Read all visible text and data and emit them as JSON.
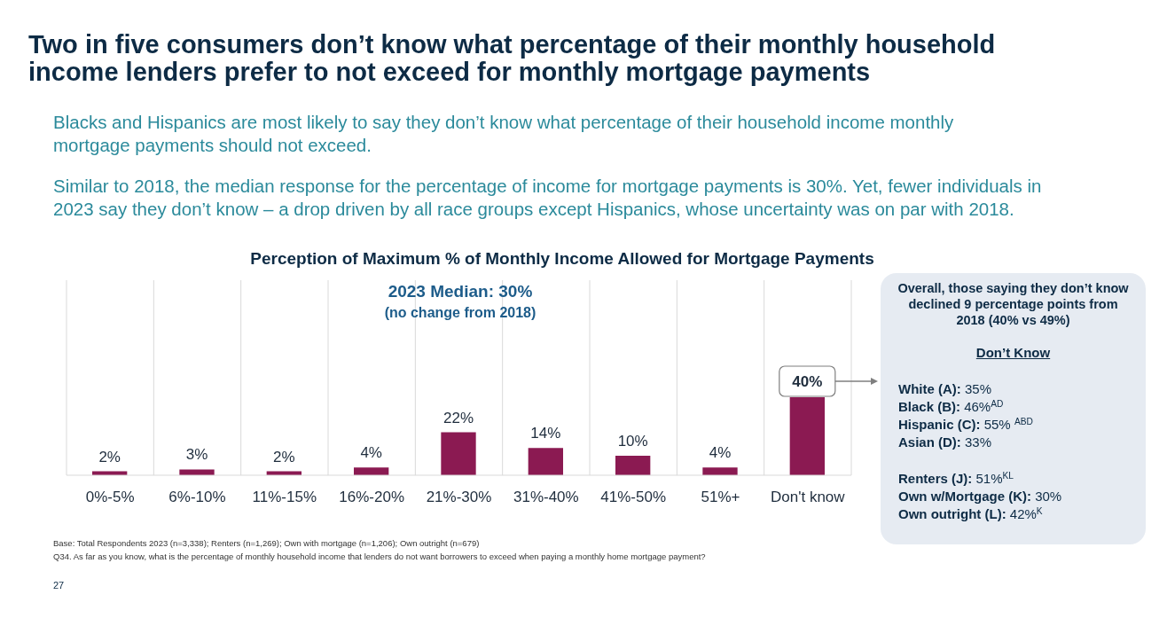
{
  "chart_data": {
    "type": "bar",
    "title": "Two in five consumers don’t know what percentage of their monthly household income lenders prefer to not exceed for monthly mortgage payments",
    "subtitle": "Perception of Maximum % of Monthly Income Allowed for Mortgage Payments",
    "categories": [
      "0%-5%",
      "6%-10%",
      "11%-15%",
      "16%-20%",
      "21%-30%",
      "31%-40%",
      "41%-50%",
      "51%+",
      "Don't know"
    ],
    "values": [
      2,
      3,
      2,
      4,
      22,
      14,
      10,
      4,
      40
    ],
    "value_labels": [
      "2%",
      "3%",
      "2%",
      "4%",
      "22%",
      "14%",
      "10%",
      "4%",
      "40%"
    ],
    "color": "#8b1a52",
    "ylim": [
      0,
      100
    ],
    "tick_labels": "x",
    "grid": "x",
    "annotations": [
      "Blacks and Hispanics are most likely to say they don’t know what percentage of their household income monthly mortgage payments should not exceed.",
      "Similar to 2018, the median response for the percentage of income for mortgage payments is 30%. Yet, fewer individuals in 2023 say they don’t know – a drop driven by all race groups except Hispanics, whose uncertainty was on par with 2018.",
      "2023 Median: 30%",
      "(no change from 2018)",
      "Overall, those saying they don’t know declined 9 percentage points from 2018 (40% vs 49%)",
      "Don’t Know",
      "White (A): 35%",
      "Black (B): 46%$^{AD}$",
      "Hispanic (C): 55% $^{ABD}$",
      "Asian (D): 33%",
      "Renters (J): 51%$^{KL}$",
      "Own w/Mortgage (K): 30%",
      "Own outright (L): 42%$^{K}$",
      "Base:  Total Respondents 2023 (n=3,338); Renters (n=1,269); Own with mortgage (n=1,206); Own outright (n=679)",
      "Q34. As far as you know, what is the percentage of monthly household income that lenders do not want borrowers to exceed when paying a monthly home mortgage payment?",
      "27"
    ]
  }
}
